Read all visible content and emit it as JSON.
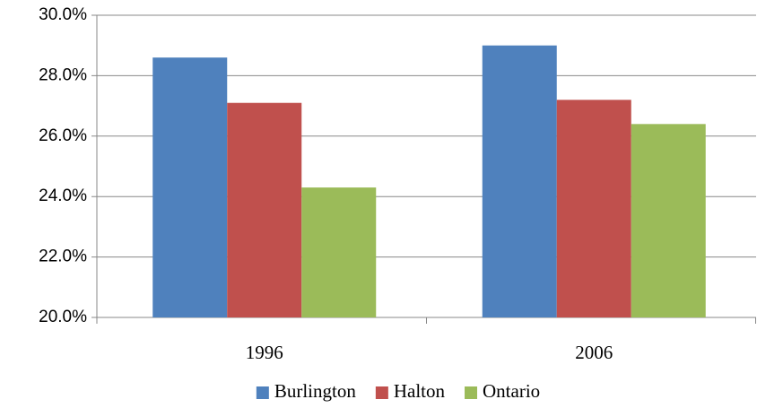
{
  "chart_data": {
    "type": "bar",
    "categories": [
      "1996",
      "2006"
    ],
    "series": [
      {
        "name": "Burlington",
        "color": "#4f81bd",
        "values": [
          28.6,
          29.0
        ]
      },
      {
        "name": "Halton",
        "color": "#c0504d",
        "values": [
          27.1,
          27.2
        ]
      },
      {
        "name": "Ontario",
        "color": "#9bbb59",
        "values": [
          24.3,
          26.4
        ]
      }
    ],
    "ylim": [
      20,
      30
    ],
    "yticks": [
      {
        "value": 20,
        "label": "20.0%"
      },
      {
        "value": 22,
        "label": "22.0%"
      },
      {
        "value": 24,
        "label": "24.0%"
      },
      {
        "value": 26,
        "label": "26.0%"
      },
      {
        "value": 28,
        "label": "28.0%"
      },
      {
        "value": 30,
        "label": "30.0%"
      }
    ],
    "grid": true,
    "legend": "bottom"
  }
}
